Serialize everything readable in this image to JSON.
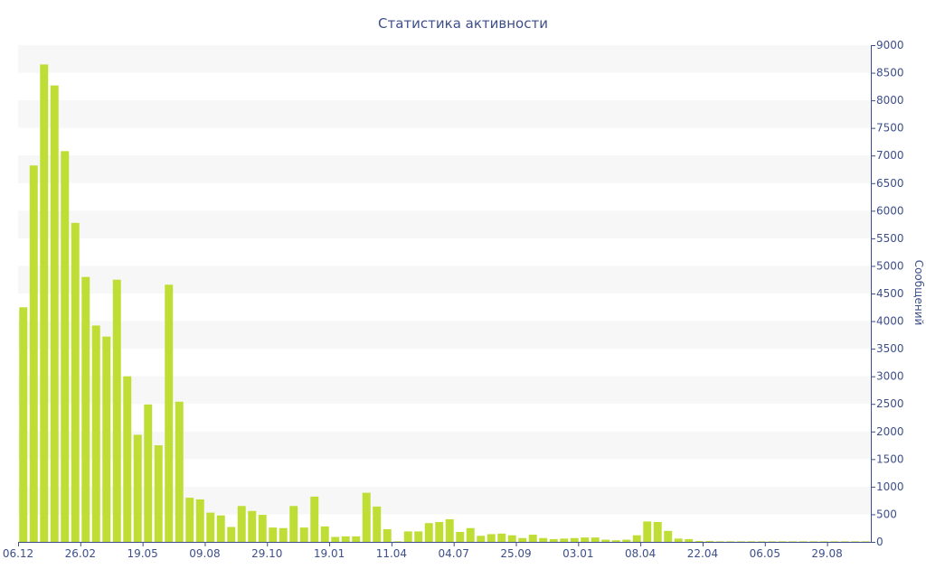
{
  "chart_data": {
    "type": "bar",
    "title": "Статистика активности",
    "ylabel": "Сообщений",
    "xlabel": "",
    "ylim": [
      0,
      9000
    ],
    "yticks": [
      0,
      500,
      1000,
      1500,
      2000,
      2500,
      3000,
      3500,
      4000,
      4500,
      5000,
      5500,
      6000,
      6500,
      7000,
      7500,
      8000,
      8500,
      9000
    ],
    "xtick_labels": [
      "06.12",
      "26.02",
      "19.05",
      "09.08",
      "29.10",
      "19.01",
      "11.04",
      "04.07",
      "25.09",
      "03.01",
      "08.04",
      "22.04",
      "06.05",
      "29.08"
    ],
    "y_axis_position": "right",
    "grid": "alternating horizontal bands",
    "bar_color": "#bede35",
    "values": [
      4250,
      6820,
      8650,
      8270,
      7080,
      5780,
      4800,
      3920,
      3720,
      4750,
      3000,
      1940,
      2490,
      1750,
      4660,
      2540,
      800,
      770,
      530,
      480,
      270,
      650,
      560,
      490,
      260,
      250,
      650,
      260,
      820,
      280,
      90,
      100,
      100,
      890,
      640,
      230,
      10,
      190,
      190,
      340,
      360,
      410,
      180,
      250,
      110,
      140,
      150,
      120,
      70,
      130,
      70,
      50,
      60,
      70,
      80,
      80,
      40,
      30,
      40,
      120,
      370,
      360,
      200,
      60,
      50,
      15,
      15,
      10,
      10,
      10,
      10,
      10,
      10,
      10,
      10,
      10,
      10,
      10,
      10,
      10,
      10,
      10
    ]
  }
}
